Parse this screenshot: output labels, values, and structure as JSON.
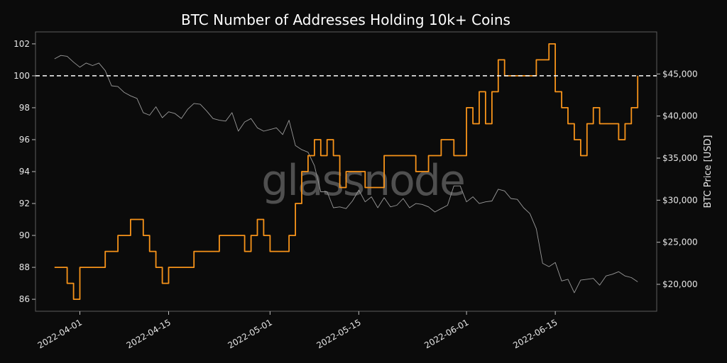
{
  "chart_data": {
    "type": "line",
    "title": "BTC Number of Addresses Holding 10k+ Coins",
    "watermark": "glassnode",
    "xlabel": "",
    "y_left": {
      "ticks": [
        86,
        88,
        90,
        92,
        94,
        96,
        98,
        100,
        102
      ],
      "range": [
        85.25,
        102.75
      ]
    },
    "y_right": {
      "label": "BTC Price [USD]",
      "ticks": [
        20000,
        25000,
        30000,
        35000,
        40000,
        45000
      ],
      "tick_labels": [
        "$20,000",
        "$25,000",
        "$30,000",
        "$35,000",
        "$40,000",
        "$45,000"
      ],
      "range": [
        16800,
        50000
      ]
    },
    "x_ticks": [
      {
        "date": "2022-04-01",
        "label": "2022-04-01"
      },
      {
        "date": "2022-04-15",
        "label": "2022-04-15"
      },
      {
        "date": "2022-05-01",
        "label": "2022-05-01"
      },
      {
        "date": "2022-05-15",
        "label": "2022-05-15"
      },
      {
        "date": "2022-06-01",
        "label": "2022-06-01"
      },
      {
        "date": "2022-06-15",
        "label": "2022-06-15"
      }
    ],
    "x_range": [
      "2022-03-25",
      "2022-07-01"
    ],
    "reference_line": {
      "axis": "y_left",
      "value": 100,
      "style": "dashed",
      "color": "#ffffff"
    },
    "series": [
      {
        "axis": "y_left",
        "color": "#f7931a",
        "style": "step",
        "x": [
          "2022-03-28",
          "2022-03-29",
          "2022-03-30",
          "2022-03-31",
          "2022-04-01",
          "2022-04-02",
          "2022-04-05",
          "2022-04-07",
          "2022-04-09",
          "2022-04-11",
          "2022-04-12",
          "2022-04-13",
          "2022-04-14",
          "2022-04-15",
          "2022-04-16",
          "2022-04-19",
          "2022-04-21",
          "2022-04-23",
          "2022-04-27",
          "2022-04-28",
          "2022-04-29",
          "2022-04-30",
          "2022-05-01",
          "2022-05-04",
          "2022-05-05",
          "2022-05-06",
          "2022-05-07",
          "2022-05-08",
          "2022-05-09",
          "2022-05-10",
          "2022-05-11",
          "2022-05-12",
          "2022-05-13",
          "2022-05-14",
          "2022-05-16",
          "2022-05-19",
          "2022-05-22",
          "2022-05-24",
          "2022-05-26",
          "2022-05-28",
          "2022-05-30",
          "2022-06-01",
          "2022-06-02",
          "2022-06-03",
          "2022-06-04",
          "2022-06-05",
          "2022-06-06",
          "2022-06-07",
          "2022-06-08",
          "2022-06-10",
          "2022-06-12",
          "2022-06-14",
          "2022-06-15",
          "2022-06-16",
          "2022-06-17",
          "2022-06-18",
          "2022-06-19",
          "2022-06-20",
          "2022-06-21",
          "2022-06-22",
          "2022-06-23",
          "2022-06-24",
          "2022-06-25",
          "2022-06-26",
          "2022-06-27",
          "2022-06-28"
        ],
        "values": [
          88,
          88,
          87,
          86,
          88,
          88,
          89,
          90,
          91,
          90,
          89,
          88,
          87,
          88,
          88,
          89,
          89,
          90,
          89,
          90,
          91,
          90,
          89,
          90,
          92,
          94,
          95,
          96,
          95,
          96,
          95,
          93,
          94,
          94,
          93,
          95,
          95,
          94,
          95,
          96,
          95,
          98,
          97,
          99,
          97,
          99,
          101,
          100,
          100,
          100,
          101,
          102,
          99,
          98,
          97,
          96,
          95,
          97,
          98,
          97,
          97,
          97,
          96,
          97,
          98,
          100
        ]
      },
      {
        "axis": "y_right",
        "color": "#9a9a9a",
        "style": "line",
        "x": [
          "2022-03-28",
          "2022-03-29",
          "2022-03-30",
          "2022-03-31",
          "2022-04-01",
          "2022-04-02",
          "2022-04-03",
          "2022-04-04",
          "2022-04-05",
          "2022-04-06",
          "2022-04-07",
          "2022-04-08",
          "2022-04-09",
          "2022-04-10",
          "2022-04-11",
          "2022-04-12",
          "2022-04-13",
          "2022-04-14",
          "2022-04-15",
          "2022-04-16",
          "2022-04-17",
          "2022-04-18",
          "2022-04-19",
          "2022-04-20",
          "2022-04-21",
          "2022-04-22",
          "2022-04-23",
          "2022-04-24",
          "2022-04-25",
          "2022-04-26",
          "2022-04-27",
          "2022-04-28",
          "2022-04-29",
          "2022-04-30",
          "2022-05-01",
          "2022-05-02",
          "2022-05-03",
          "2022-05-04",
          "2022-05-05",
          "2022-05-06",
          "2022-05-07",
          "2022-05-08",
          "2022-05-09",
          "2022-05-10",
          "2022-05-11",
          "2022-05-12",
          "2022-05-13",
          "2022-05-14",
          "2022-05-15",
          "2022-05-16",
          "2022-05-17",
          "2022-05-18",
          "2022-05-19",
          "2022-05-20",
          "2022-05-21",
          "2022-05-22",
          "2022-05-23",
          "2022-05-24",
          "2022-05-25",
          "2022-05-26",
          "2022-05-27",
          "2022-05-28",
          "2022-05-29",
          "2022-05-30",
          "2022-05-31",
          "2022-06-01",
          "2022-06-02",
          "2022-06-03",
          "2022-06-04",
          "2022-06-05",
          "2022-06-06",
          "2022-06-07",
          "2022-06-08",
          "2022-06-09",
          "2022-06-10",
          "2022-06-11",
          "2022-06-12",
          "2022-06-13",
          "2022-06-14",
          "2022-06-15",
          "2022-06-16",
          "2022-06-17",
          "2022-06-18",
          "2022-06-19",
          "2022-06-20",
          "2022-06-21",
          "2022-06-22",
          "2022-06-23",
          "2022-06-24",
          "2022-06-25",
          "2022-06-26",
          "2022-06-27",
          "2022-06-28"
        ],
        "values": [
          46800,
          47200,
          47100,
          46400,
          45800,
          46300,
          46000,
          46300,
          45400,
          43600,
          43500,
          42800,
          42400,
          42100,
          40400,
          40100,
          41100,
          39800,
          40500,
          40300,
          39700,
          40800,
          41500,
          41400,
          40600,
          39700,
          39500,
          39400,
          40400,
          38200,
          39300,
          39700,
          38600,
          38200,
          38400,
          38600,
          37800,
          39500,
          36500,
          36000,
          35700,
          34100,
          31000,
          31000,
          29100,
          29200,
          29000,
          29900,
          31200,
          29800,
          30400,
          29100,
          30300,
          29200,
          29400,
          30200,
          29100,
          29600,
          29500,
          29200,
          28600,
          29000,
          29400,
          31700,
          31700,
          29800,
          30400,
          29600,
          29800,
          29900,
          31300,
          31100,
          30200,
          30100,
          29100,
          28400,
          26600,
          22500,
          22100,
          22600,
          20400,
          20600,
          19000,
          20500,
          20600,
          20700,
          19900,
          21000,
          21200,
          21500,
          21000,
          20800,
          20300
        ]
      }
    ]
  }
}
